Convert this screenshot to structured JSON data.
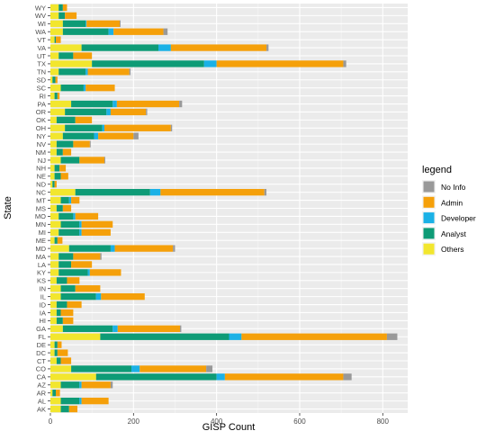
{
  "chart_data": {
    "type": "bar",
    "orientation": "horizontal",
    "stacked": true,
    "xlabel": "GISP Count",
    "ylabel": "State",
    "xlim": [
      0,
      860
    ],
    "x_ticks": [
      0,
      200,
      400,
      600,
      800
    ],
    "grid": true,
    "legend_position": "right",
    "legend_title": "legend",
    "legend_entries": [
      "No Info",
      "Admin",
      "Developer",
      "Analyst",
      "Others"
    ],
    "stack_order": [
      "Others",
      "Analyst",
      "Developer",
      "Admin",
      "No Info"
    ],
    "colors": {
      "No Info": "#999999",
      "Admin": "#F5A00A",
      "Developer": "#1BB1E6",
      "Analyst": "#0E9B76",
      "Others": "#F2E62E",
      "panel": "#EBEBEB",
      "grid": "#FFFFFF"
    },
    "categories": [
      "WY",
      "WV",
      "WI",
      "WA",
      "VT",
      "VA",
      "UT",
      "TX",
      "TN",
      "SD",
      "SC",
      "RI",
      "PA",
      "OR",
      "OK",
      "OH",
      "NY",
      "NV",
      "NM",
      "NJ",
      "NH",
      "NE",
      "ND",
      "NC",
      "MT",
      "MS",
      "MO",
      "MN",
      "MI",
      "ME",
      "MD",
      "MA",
      "LA",
      "KY",
      "KS",
      "IN",
      "IL",
      "ID",
      "IA",
      "HI",
      "GA",
      "FL",
      "DE",
      "DC",
      "CT",
      "CO",
      "CA",
      "AZ",
      "AR",
      "AL",
      "AK"
    ],
    "series": [
      {
        "name": "Others",
        "values": [
          20,
          20,
          30,
          30,
          10,
          75,
          20,
          100,
          20,
          5,
          25,
          10,
          50,
          35,
          15,
          35,
          30,
          15,
          15,
          25,
          10,
          10,
          5,
          60,
          25,
          15,
          20,
          25,
          20,
          10,
          45,
          20,
          20,
          20,
          15,
          25,
          25,
          15,
          15,
          15,
          30,
          120,
          10,
          10,
          15,
          50,
          110,
          25,
          5,
          25,
          25
        ]
      },
      {
        "name": "Analyst",
        "values": [
          10,
          15,
          55,
          110,
          3,
          185,
          35,
          270,
          65,
          7,
          55,
          7,
          100,
          100,
          45,
          90,
          75,
          40,
          15,
          45,
          12,
          15,
          5,
          180,
          20,
          15,
          35,
          45,
          50,
          7,
          100,
          35,
          30,
          70,
          25,
          35,
          85,
          25,
          10,
          15,
          120,
          310,
          7,
          7,
          10,
          145,
          290,
          45,
          8,
          45,
          20
        ]
      },
      {
        "name": "Developer",
        "values": [
          0,
          0,
          2,
          12,
          0,
          30,
          0,
          30,
          5,
          0,
          5,
          0,
          10,
          10,
          0,
          5,
          10,
          0,
          0,
          0,
          0,
          0,
          0,
          25,
          5,
          0,
          5,
          5,
          5,
          0,
          10,
          0,
          0,
          5,
          0,
          0,
          12,
          0,
          0,
          0,
          12,
          30,
          0,
          0,
          0,
          20,
          20,
          5,
          0,
          5,
          0
        ]
      },
      {
        "name": "Admin",
        "values": [
          10,
          28,
          80,
          120,
          12,
          230,
          45,
          305,
          100,
          5,
          70,
          5,
          150,
          85,
          40,
          160,
          85,
          40,
          20,
          60,
          15,
          18,
          5,
          250,
          20,
          20,
          55,
          75,
          70,
          12,
          140,
          65,
          50,
          75,
          30,
          60,
          105,
          35,
          30,
          25,
          150,
          350,
          10,
          25,
          25,
          160,
          285,
          70,
          10,
          65,
          20
        ]
      },
      {
        "name": "No Info",
        "values": [
          0,
          0,
          2,
          10,
          0,
          5,
          0,
          7,
          3,
          0,
          0,
          0,
          7,
          3,
          0,
          3,
          12,
          2,
          0,
          2,
          0,
          0,
          0,
          5,
          0,
          0,
          0,
          0,
          0,
          0,
          5,
          3,
          0,
          0,
          0,
          0,
          0,
          0,
          0,
          0,
          3,
          25,
          0,
          0,
          0,
          15,
          20,
          5,
          0,
          0,
          0
        ]
      }
    ]
  }
}
